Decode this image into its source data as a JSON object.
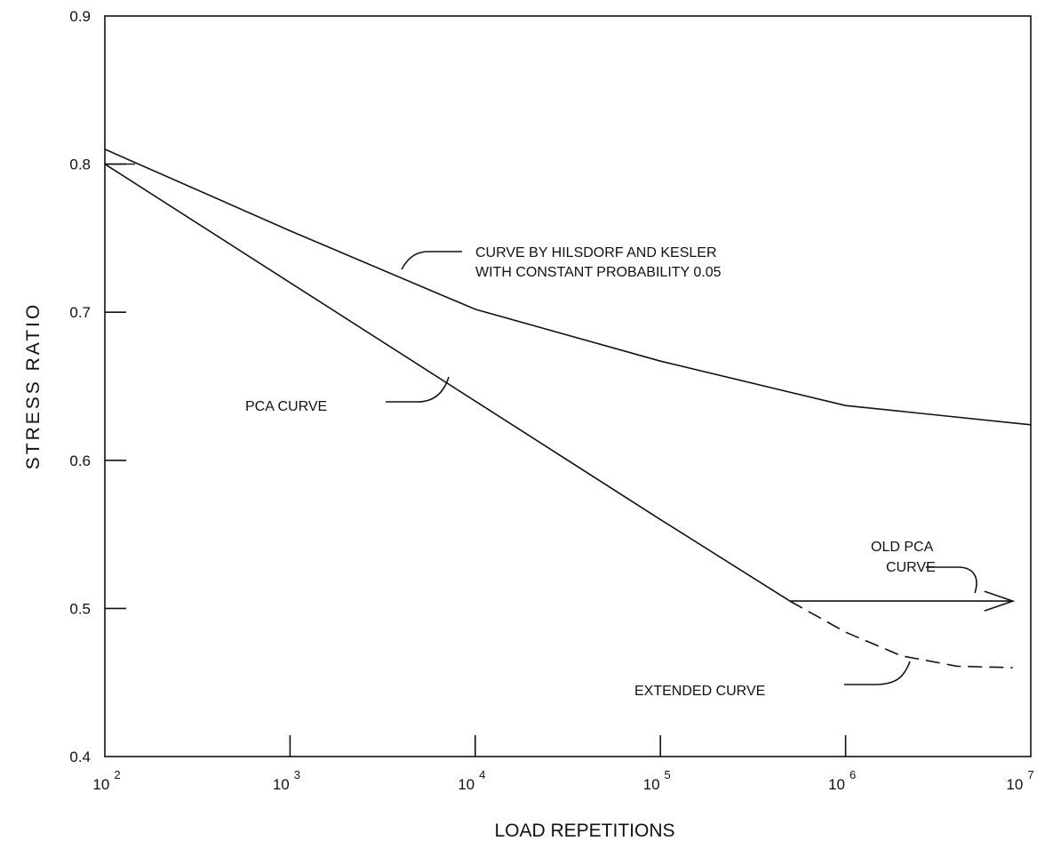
{
  "chart_data": {
    "type": "line",
    "xlabel": "LOAD REPETITIONS",
    "ylabel": "STRESS RATIO",
    "xscale": "log",
    "xlim": [
      100,
      10000000
    ],
    "ylim": [
      0.4,
      0.9
    ],
    "grid": false,
    "x_ticks": [
      {
        "base": "10",
        "exp": "2",
        "value": 100
      },
      {
        "base": "10",
        "exp": "3",
        "value": 1000
      },
      {
        "base": "10",
        "exp": "4",
        "value": 10000
      },
      {
        "base": "10",
        "exp": "5",
        "value": 100000
      },
      {
        "base": "10",
        "exp": "6",
        "value": 1000000
      },
      {
        "base": "10",
        "exp": "7",
        "value": 10000000
      }
    ],
    "y_ticks": [
      "0.4",
      "0.5",
      "0.6",
      "0.7",
      "0.8",
      "0.9"
    ],
    "y_tick_values": [
      0.4,
      0.5,
      0.6,
      0.7,
      0.8,
      0.9
    ],
    "series": [
      {
        "name": "CURVE BY HILSDORF AND KESLER WITH CONSTANT PROBABILITY 0.05",
        "style": "solid",
        "x": [
          100,
          1000,
          10000,
          100000,
          1000000,
          10000000
        ],
        "y": [
          0.81,
          0.755,
          0.702,
          0.667,
          0.637,
          0.624
        ]
      },
      {
        "name": "PCA CURVE",
        "style": "solid",
        "x": [
          100,
          1000,
          10000,
          100000,
          500000
        ],
        "y": [
          0.8,
          0.72,
          0.64,
          0.56,
          0.505
        ]
      },
      {
        "name": "EXTENDED CURVE",
        "style": "dashed",
        "x": [
          500000,
          1000000,
          2000000,
          4000000,
          8000000
        ],
        "y": [
          0.505,
          0.484,
          0.468,
          0.461,
          0.46
        ]
      },
      {
        "name": "OLD PCA CURVE",
        "style": "arrow",
        "x": [
          500000,
          8000000
        ],
        "y": [
          0.505,
          0.505
        ]
      }
    ],
    "annotations": {
      "hilsdorf_line1": "CURVE BY HILSDORF AND KESLER",
      "hilsdorf_line2": "WITH CONSTANT PROBABILITY 0.05",
      "pca": "PCA CURVE",
      "old_pca_line1": "OLD PCA",
      "old_pca_line2": "CURVE",
      "extended": "EXTENDED CURVE"
    }
  }
}
